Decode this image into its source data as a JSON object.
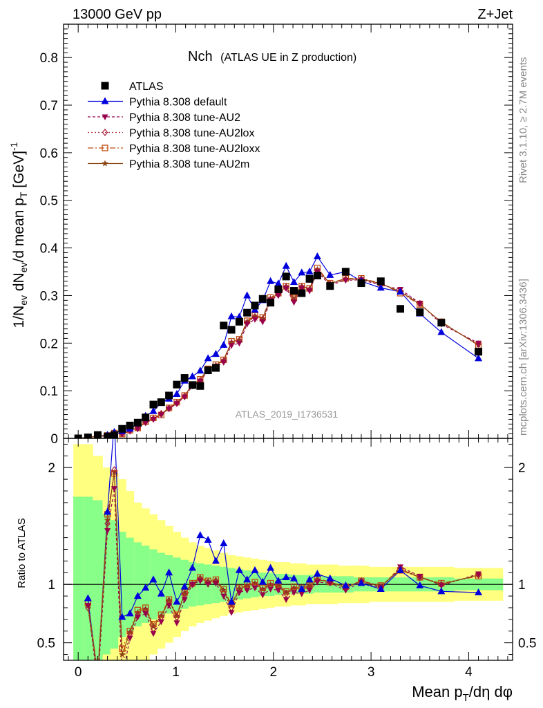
{
  "header": {
    "left": "13000 GeV pp",
    "right": "Z+Jet"
  },
  "plot_title": {
    "main": "Nch",
    "sub": "(ATLAS UE in Z production)"
  },
  "side_labels": {
    "rivet": "Rivet 3.1.10, ≥ 2.7M events",
    "mcplots": "mcplots.cern.ch [arXiv:1306.3436]"
  },
  "analysis_tag": "ATLAS_2019_I1736531",
  "colors": {
    "data": "#000000",
    "default": "#0000dd",
    "AU2": "#99004c",
    "AU2lox": "#a8203a",
    "AU2loxx": "#c04a10",
    "AU2m": "#8b4513",
    "band_inner": "#88ff88",
    "band_outer": "#ffff80"
  },
  "chart_data": [
    {
      "type": "scatter",
      "panel": "main",
      "xlabel": "Mean p_T/dη dφ",
      "ylabel": "1/N_ev dN_ev/d mean p_T [GeV]^-1",
      "xlim": [
        -0.15,
        4.45
      ],
      "ylim": [
        0,
        0.87
      ],
      "yticks": [
        0,
        0.1,
        0.2,
        0.3,
        0.4,
        0.5,
        0.6,
        0.7,
        0.8
      ],
      "xticks": [
        0,
        1,
        2,
        3,
        4
      ],
      "legend_position": "top-left",
      "x": [
        0.0,
        0.1,
        0.2,
        0.3,
        0.37,
        0.45,
        0.53,
        0.61,
        0.69,
        0.77,
        0.85,
        0.93,
        1.01,
        1.09,
        1.17,
        1.25,
        1.33,
        1.41,
        1.49,
        1.57,
        1.65,
        1.73,
        1.81,
        1.89,
        1.97,
        2.05,
        2.13,
        2.21,
        2.29,
        2.37,
        2.45,
        2.58,
        2.74,
        2.9,
        3.1,
        3.3,
        3.5,
        3.72,
        4.1
      ],
      "series": [
        {
          "name": "ATLAS",
          "key": "data",
          "marker": "square",
          "values": [
            0.0,
            0.002,
            0.007,
            0.004,
            0.007,
            0.02,
            0.027,
            0.033,
            0.044,
            0.071,
            0.076,
            0.09,
            0.113,
            0.127,
            0.112,
            0.11,
            0.143,
            0.148,
            0.237,
            0.228,
            0.245,
            0.264,
            0.279,
            0.293,
            0.285,
            0.313,
            0.34,
            0.31,
            0.305,
            0.335,
            0.342,
            0.32,
            0.35,
            0.326,
            0.33,
            0.272,
            0.265,
            0.243,
            0.182
          ]
        },
        {
          "name": "Pythia 8.308 default",
          "key": "default",
          "marker": "triangle-up",
          "dash": "",
          "values": [
            0.0,
            0.002,
            0.005,
            0.007,
            0.013,
            0.015,
            0.02,
            0.031,
            0.047,
            0.057,
            0.075,
            0.083,
            0.093,
            0.121,
            0.13,
            0.142,
            0.168,
            0.177,
            0.196,
            0.256,
            0.255,
            0.3,
            0.27,
            0.29,
            0.33,
            0.325,
            0.362,
            0.328,
            0.348,
            0.35,
            0.382,
            0.343,
            0.35,
            0.33,
            0.316,
            0.308,
            0.262,
            0.223,
            0.168
          ]
        },
        {
          "name": "Pythia 8.308 tune-AU2",
          "key": "AU2",
          "marker": "triangle-down",
          "dash": "4,3",
          "values": [
            0.0,
            0.002,
            0.004,
            0.005,
            0.01,
            0.01,
            0.015,
            0.02,
            0.033,
            0.04,
            0.05,
            0.062,
            0.073,
            0.087,
            0.11,
            0.12,
            0.142,
            0.15,
            0.16,
            0.195,
            0.2,
            0.24,
            0.25,
            0.245,
            0.29,
            0.3,
            0.315,
            0.286,
            0.315,
            0.31,
            0.35,
            0.322,
            0.332,
            0.333,
            0.322,
            0.313,
            0.284,
            0.24,
            0.2
          ]
        },
        {
          "name": "Pythia 8.308 tune-AU2lox",
          "key": "AU2lox",
          "marker": "diamond",
          "dash": "2,3",
          "values": [
            0.0,
            0.002,
            0.004,
            0.005,
            0.011,
            0.01,
            0.016,
            0.021,
            0.034,
            0.041,
            0.052,
            0.063,
            0.074,
            0.088,
            0.112,
            0.121,
            0.144,
            0.152,
            0.162,
            0.2,
            0.205,
            0.243,
            0.255,
            0.25,
            0.292,
            0.302,
            0.318,
            0.29,
            0.318,
            0.312,
            0.352,
            0.324,
            0.334,
            0.334,
            0.324,
            0.31,
            0.283,
            0.243,
            0.198
          ]
        },
        {
          "name": "Pythia 8.308 tune-AU2loxx",
          "key": "AU2loxx",
          "marker": "square-open",
          "dash": "8,3,2,3",
          "values": [
            0.0,
            0.002,
            0.005,
            0.006,
            0.011,
            0.009,
            0.017,
            0.022,
            0.035,
            0.043,
            0.049,
            0.064,
            0.076,
            0.09,
            0.113,
            0.124,
            0.146,
            0.155,
            0.165,
            0.204,
            0.208,
            0.247,
            0.258,
            0.254,
            0.296,
            0.305,
            0.32,
            0.295,
            0.32,
            0.315,
            0.358,
            0.326,
            0.336,
            0.336,
            0.326,
            0.305,
            0.281,
            0.245,
            0.195
          ]
        },
        {
          "name": "Pythia 8.308 tune-AU2m",
          "key": "AU2m",
          "marker": "star",
          "dash": "",
          "values": [
            0.0,
            0.002,
            0.004,
            0.006,
            0.012,
            0.009,
            0.016,
            0.022,
            0.034,
            0.042,
            0.051,
            0.064,
            0.075,
            0.089,
            0.113,
            0.123,
            0.145,
            0.154,
            0.164,
            0.202,
            0.207,
            0.245,
            0.257,
            0.252,
            0.294,
            0.304,
            0.319,
            0.292,
            0.319,
            0.314,
            0.355,
            0.325,
            0.335,
            0.335,
            0.325,
            0.308,
            0.282,
            0.244,
            0.196
          ]
        }
      ]
    },
    {
      "type": "line",
      "panel": "ratio",
      "ylabel": "Ratio to ATLAS",
      "ylim": [
        0.35,
        2.25
      ],
      "yticks": [
        0.5,
        1,
        2
      ],
      "xticks": [
        0,
        1,
        2,
        3,
        4
      ],
      "band_edges": [
        -0.05,
        0.05,
        0.15,
        0.25,
        0.33,
        0.41,
        0.49,
        0.57,
        0.65,
        0.73,
        0.81,
        0.89,
        0.97,
        1.05,
        1.13,
        1.21,
        1.29,
        1.37,
        1.45,
        1.53,
        1.61,
        1.69,
        1.77,
        1.85,
        1.93,
        2.01,
        2.09,
        2.17,
        2.25,
        2.33,
        2.41,
        2.5,
        2.66,
        2.82,
        2.98,
        3.2,
        3.4,
        3.6,
        3.85,
        4.35
      ],
      "band_inner": [
        0.75,
        0.75,
        0.72,
        0.6,
        0.55,
        0.45,
        0.4,
        0.36,
        0.33,
        0.3,
        0.27,
        0.25,
        0.23,
        0.21,
        0.19,
        0.18,
        0.17,
        0.16,
        0.15,
        0.14,
        0.13,
        0.12,
        0.11,
        0.1,
        0.1,
        0.09,
        0.09,
        0.08,
        0.08,
        0.08,
        0.07,
        0.07,
        0.07,
        0.06,
        0.06,
        0.06,
        0.06,
        0.06,
        0.05
      ],
      "band_outer": [
        1.2,
        1.2,
        1.1,
        1.0,
        0.95,
        0.9,
        0.8,
        0.7,
        0.65,
        0.6,
        0.55,
        0.5,
        0.45,
        0.4,
        0.36,
        0.33,
        0.31,
        0.29,
        0.27,
        0.25,
        0.24,
        0.23,
        0.22,
        0.21,
        0.2,
        0.19,
        0.19,
        0.18,
        0.18,
        0.17,
        0.17,
        0.17,
        0.16,
        0.16,
        0.15,
        0.15,
        0.15,
        0.15,
        0.14
      ],
      "x": [
        0.1,
        0.2,
        0.3,
        0.37,
        0.45,
        0.53,
        0.61,
        0.69,
        0.77,
        0.85,
        0.93,
        1.01,
        1.09,
        1.17,
        1.25,
        1.33,
        1.41,
        1.49,
        1.57,
        1.65,
        1.73,
        1.81,
        1.89,
        1.97,
        2.05,
        2.13,
        2.21,
        2.29,
        2.37,
        2.45,
        2.58,
        2.74,
        2.9,
        3.1,
        3.3,
        3.5,
        3.72,
        4.1
      ],
      "series": [
        {
          "name": "Pythia 8.308 default",
          "key": "default",
          "marker": "triangle-up",
          "dash": "",
          "values": [
            0.88,
            0.2,
            1.62,
            2.4,
            0.72,
            0.75,
            0.9,
            0.97,
            1.04,
            0.92,
            1.1,
            0.85,
            0.98,
            1.14,
            1.42,
            1.38,
            1.2,
            1.35,
            0.85,
            1.12,
            1.04,
            1.12,
            1.02,
            1.14,
            1.03,
            1.06,
            1.05,
            0.96,
            1.04,
            1.09,
            1.05,
            0.99,
            1.01,
            0.96,
            1.12,
            0.99,
            0.94,
            0.93
          ]
        },
        {
          "name": "Pythia 8.308 tune-AU2",
          "key": "AU2",
          "marker": "triangle-down",
          "dash": "4,3",
          "values": [
            0.82,
            0.15,
            1.46,
            1.82,
            0.2,
            0.54,
            0.72,
            0.75,
            0.58,
            0.68,
            0.82,
            0.67,
            0.87,
            1.0,
            1.03,
            1.0,
            1.01,
            0.9,
            0.76,
            0.93,
            0.95,
            0.97,
            0.91,
            0.96,
            0.95,
            0.87,
            0.93,
            0.92,
            0.95,
            1.02,
            1.01,
            0.95,
            1.02,
            0.97,
            1.15,
            1.07,
            0.99,
            1.09
          ]
        },
        {
          "name": "Pythia 8.308 tune-AU2lox",
          "key": "AU2lox",
          "marker": "diamond",
          "dash": "2,3",
          "values": [
            0.8,
            0.2,
            1.52,
            1.98,
            0.3,
            0.58,
            0.74,
            0.78,
            0.62,
            0.72,
            0.86,
            0.72,
            0.92,
            1.0,
            1.05,
            1.02,
            1.03,
            0.93,
            0.8,
            0.96,
            0.98,
            1.0,
            0.95,
            0.99,
            0.98,
            0.92,
            0.96,
            0.95,
            0.98,
            1.04,
            1.02,
            0.97,
            1.03,
            0.98,
            1.14,
            1.06,
            1.0,
            1.08
          ]
        },
        {
          "name": "Pythia 8.308 tune-AU2loxx",
          "key": "AU2loxx",
          "marker": "square-open",
          "dash": "8,3,2,3",
          "values": [
            0.84,
            0.25,
            1.6,
            1.95,
            0.45,
            0.6,
            0.78,
            0.8,
            0.66,
            0.74,
            0.87,
            0.74,
            0.93,
            1.01,
            1.06,
            1.03,
            1.04,
            0.96,
            0.83,
            0.97,
            1.0,
            1.02,
            0.97,
            1.01,
            1.0,
            0.94,
            0.98,
            0.97,
            0.99,
            1.05,
            1.02,
            0.98,
            1.03,
            0.99,
            1.12,
            1.06,
            1.01,
            1.07
          ]
        },
        {
          "name": "Pythia 8.308 tune-AU2m",
          "key": "AU2m",
          "marker": "star",
          "dash": "",
          "values": [
            0.82,
            0.22,
            1.55,
            1.96,
            0.4,
            0.59,
            0.76,
            0.79,
            0.64,
            0.73,
            0.86,
            0.73,
            0.92,
            1.0,
            1.05,
            1.02,
            1.03,
            0.95,
            0.82,
            0.96,
            0.99,
            1.01,
            0.96,
            1.0,
            0.99,
            0.93,
            0.97,
            0.96,
            0.98,
            1.04,
            1.02,
            0.97,
            1.03,
            0.98,
            1.13,
            1.06,
            1.0,
            1.08
          ]
        }
      ]
    }
  ]
}
